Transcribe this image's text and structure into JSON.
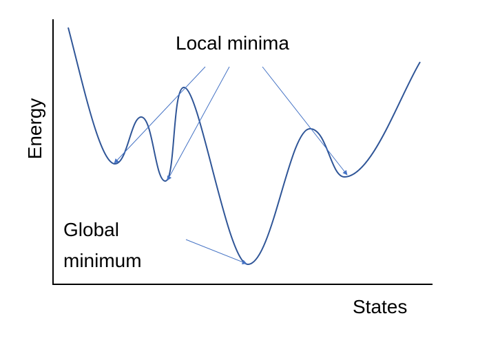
{
  "labels": {
    "local_minima": "Local minima",
    "global_minimum": [
      "Global",
      "minimum"
    ]
  },
  "axes": {
    "y_label": "Energy",
    "x_label": "States"
  }
}
